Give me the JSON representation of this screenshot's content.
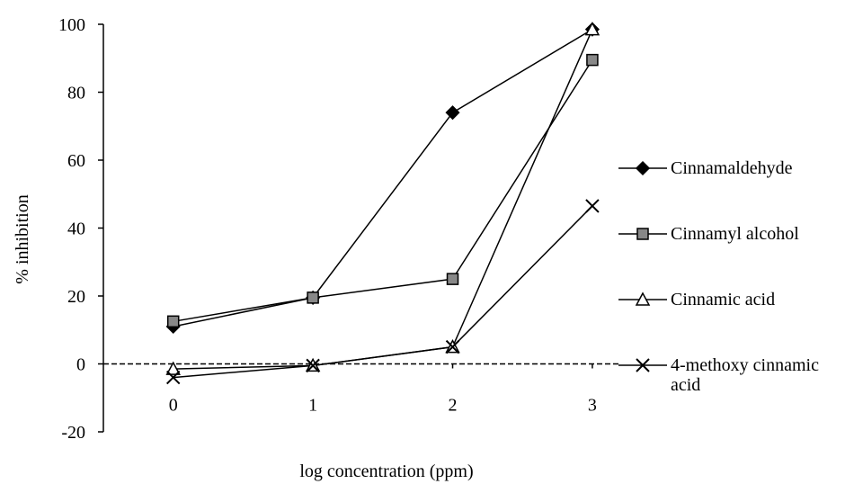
{
  "chart_data": {
    "type": "line",
    "x_label": "log concentration (ppm)",
    "y_label": "% inhibition",
    "x": [
      0,
      1,
      2,
      3
    ],
    "xlim": [
      -0.5,
      3.2
    ],
    "xticks": [
      0,
      1,
      2,
      3
    ],
    "ylim": [
      -20,
      100
    ],
    "yticks": [
      -20,
      0,
      20,
      40,
      60,
      80,
      100
    ],
    "grid": false,
    "legend": "right",
    "series": [
      {
        "name": "Cinnamaldehyde",
        "color": "#000000",
        "marker": "diamond",
        "values": [
          11,
          19.5,
          74,
          98.5
        ]
      },
      {
        "name": "Cinnamyl alcohol",
        "color": "#000000",
        "marker": "square",
        "values": [
          12.5,
          19.5,
          25,
          89.5
        ]
      },
      {
        "name": "Cinnamic acid",
        "color": "#000000",
        "marker": "triangle",
        "values": [
          -1.5,
          -0.5,
          5,
          98.5
        ]
      },
      {
        "name": "4-methoxy cinnamic acid",
        "color": "#000000",
        "marker": "x",
        "values": [
          -4,
          -0.5,
          5,
          46.5
        ]
      }
    ]
  }
}
